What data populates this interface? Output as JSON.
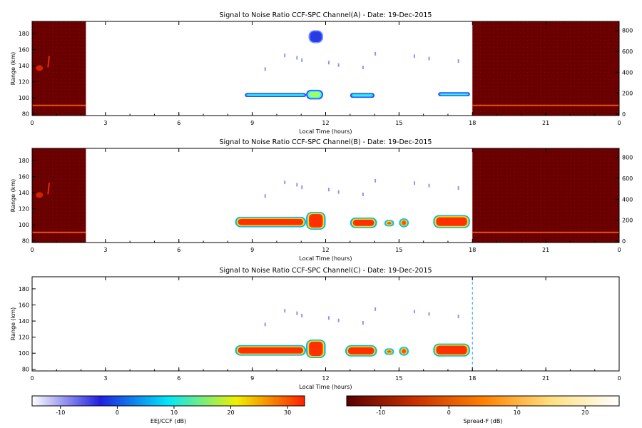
{
  "chart_data": [
    {
      "type": "heatmap",
      "title": "Signal to Noise Ratio CCF-SPC Channel(A) - Date: 19-Dec-2015",
      "xlabel": "Local Time (hours)",
      "ylabel": "Range (km)",
      "xlim": [
        0,
        24
      ],
      "ylim": [
        78,
        195
      ],
      "xticks": [
        "0",
        "3",
        "6",
        "9",
        "12",
        "15",
        "18",
        "21",
        "0"
      ],
      "yticks": [
        80,
        100,
        120,
        140,
        160,
        180
      ],
      "y2lim": [
        0,
        900
      ],
      "y2ticks": [
        0,
        200,
        400,
        600,
        800
      ],
      "spread_f_blocks": [
        [
          0,
          2.2
        ],
        [
          18,
          24
        ]
      ],
      "ejj_echoes": [
        {
          "t0": 8.7,
          "t1": 11.2,
          "r0": 101,
          "r1": 106,
          "level": 6
        },
        {
          "t0": 11.2,
          "t1": 11.9,
          "r0": 98,
          "r1": 110,
          "level": 10
        },
        {
          "t0": 11.3,
          "t1": 11.9,
          "r0": 168,
          "r1": 184,
          "level": -4
        },
        {
          "t0": 13.0,
          "t1": 14.0,
          "r0": 100,
          "r1": 106,
          "level": 3
        },
        {
          "t0": 16.6,
          "t1": 17.9,
          "r0": 102,
          "r1": 107,
          "level": 2
        }
      ]
    },
    {
      "type": "heatmap",
      "title": "Signal to Noise Ratio CCF-SPC Channel(B) - Date: 19-Dec-2015",
      "xlabel": "Local Time (hours)",
      "ylabel": "Range (km)",
      "xlim": [
        0,
        24
      ],
      "ylim": [
        78,
        195
      ],
      "xticks": [
        "0",
        "3",
        "6",
        "9",
        "12",
        "15",
        "18",
        "21",
        "0"
      ],
      "yticks": [
        80,
        100,
        120,
        140,
        160,
        180
      ],
      "y2lim": [
        0,
        900
      ],
      "y2ticks": [
        0,
        200,
        400,
        600,
        800
      ],
      "spread_f_blocks": [
        [
          0,
          2.2
        ],
        [
          18,
          24
        ]
      ],
      "ejj_echoes": [
        {
          "t0": 8.3,
          "t1": 11.2,
          "r0": 97,
          "r1": 110,
          "level": 28
        },
        {
          "t0": 11.2,
          "t1": 12.0,
          "r0": 94,
          "r1": 116,
          "level": 30
        },
        {
          "t0": 13.0,
          "t1": 14.1,
          "r0": 96,
          "r1": 109,
          "level": 28
        },
        {
          "t0": 14.4,
          "t1": 14.8,
          "r0": 98,
          "r1": 106,
          "level": 22
        },
        {
          "t0": 15.0,
          "t1": 15.4,
          "r0": 97,
          "r1": 108,
          "level": 24
        },
        {
          "t0": 16.4,
          "t1": 17.9,
          "r0": 96,
          "r1": 112,
          "level": 28
        }
      ]
    },
    {
      "type": "heatmap",
      "title": "Signal to Noise Ratio CCF-SPC Channel(C) - Date: 19-Dec-2015",
      "xlabel": "Local Time (hours)",
      "ylabel": "Range (km)",
      "xlim": [
        0,
        24
      ],
      "ylim": [
        78,
        195
      ],
      "xticks": [
        "0",
        "3",
        "6",
        "9",
        "12",
        "15",
        "18",
        "21",
        "0"
      ],
      "yticks": [
        80,
        100,
        120,
        140,
        160,
        180
      ],
      "spread_f_blocks": [],
      "ejj_echoes": [
        {
          "t0": 8.3,
          "t1": 11.2,
          "r0": 97,
          "r1": 110,
          "level": 28
        },
        {
          "t0": 11.2,
          "t1": 12.0,
          "r0": 94,
          "r1": 117,
          "level": 30
        },
        {
          "t0": 12.8,
          "t1": 14.1,
          "r0": 96,
          "r1": 110,
          "level": 28
        },
        {
          "t0": 14.4,
          "t1": 14.8,
          "r0": 98,
          "r1": 106,
          "level": 22
        },
        {
          "t0": 15.0,
          "t1": 15.4,
          "r0": 97,
          "r1": 108,
          "level": 24
        },
        {
          "t0": 16.4,
          "t1": 17.9,
          "r0": 96,
          "r1": 112,
          "level": 28
        }
      ]
    }
  ],
  "colorbars": [
    {
      "label": "EEJ/CCF (dB)",
      "range": [
        -15,
        33
      ],
      "ticks": [
        -10,
        0,
        10,
        20,
        30
      ],
      "colors": [
        "#ffffff",
        "#2020e0",
        "#00e8f8",
        "#f0f000",
        "#ff2000"
      ]
    },
    {
      "label": "Spread-F (dB)",
      "range": [
        -15,
        25
      ],
      "ticks": [
        -10,
        0,
        10,
        20
      ],
      "colors": [
        "#5a0000",
        "#c83000",
        "#ff8000",
        "#ffe080",
        "#ffffff"
      ]
    }
  ]
}
